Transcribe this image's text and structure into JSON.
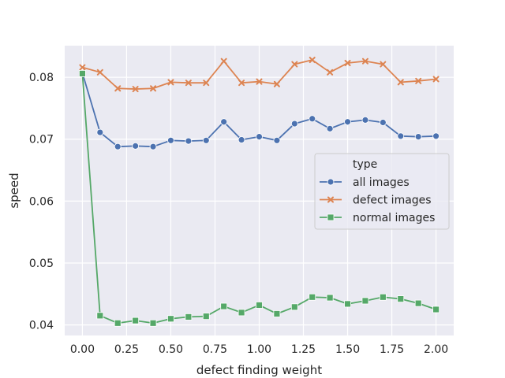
{
  "chart_data": {
    "type": "line",
    "xlabel": "defect finding weight",
    "ylabel": "speed",
    "xlim": [
      -0.1,
      2.1
    ],
    "ylim": [
      0.0383,
      0.0851
    ],
    "xticks": [
      "0.00",
      "0.25",
      "0.50",
      "0.75",
      "1.00",
      "1.25",
      "1.50",
      "1.75",
      "2.00"
    ],
    "yticks": [
      "0.04",
      "0.05",
      "0.06",
      "0.07",
      "0.08"
    ],
    "grid": true,
    "legend": {
      "title": "type",
      "placement": "center-right"
    },
    "x": [
      0.0,
      0.1,
      0.2,
      0.3,
      0.4,
      0.5,
      0.6,
      0.7,
      0.8,
      0.9,
      1.0,
      1.1,
      1.2,
      1.3,
      1.4,
      1.5,
      1.6,
      1.7,
      1.8,
      1.9,
      2.0
    ],
    "series": [
      {
        "name": "all images",
        "color": "#4c72b0",
        "marker": "circle",
        "values": [
          0.0807,
          0.0711,
          0.0688,
          0.0689,
          0.0688,
          0.0698,
          0.0697,
          0.0698,
          0.0728,
          0.0699,
          0.0704,
          0.0698,
          0.0725,
          0.0733,
          0.0717,
          0.0728,
          0.0731,
          0.0727,
          0.0705,
          0.0704,
          0.0705
        ]
      },
      {
        "name": "defect images",
        "color": "#dd8452",
        "marker": "x",
        "values": [
          0.0816,
          0.0808,
          0.0782,
          0.0781,
          0.0782,
          0.0792,
          0.0791,
          0.0791,
          0.0826,
          0.0791,
          0.0793,
          0.0789,
          0.0821,
          0.0828,
          0.0808,
          0.0823,
          0.0826,
          0.0821,
          0.0792,
          0.0794,
          0.0797
        ]
      },
      {
        "name": "normal images",
        "color": "#55a868",
        "marker": "square",
        "values": [
          0.0806,
          0.0415,
          0.0403,
          0.0407,
          0.0403,
          0.041,
          0.0413,
          0.0414,
          0.043,
          0.042,
          0.0432,
          0.0418,
          0.0429,
          0.0445,
          0.0444,
          0.0434,
          0.0439,
          0.0445,
          0.0442,
          0.0435,
          0.0425
        ]
      }
    ]
  }
}
